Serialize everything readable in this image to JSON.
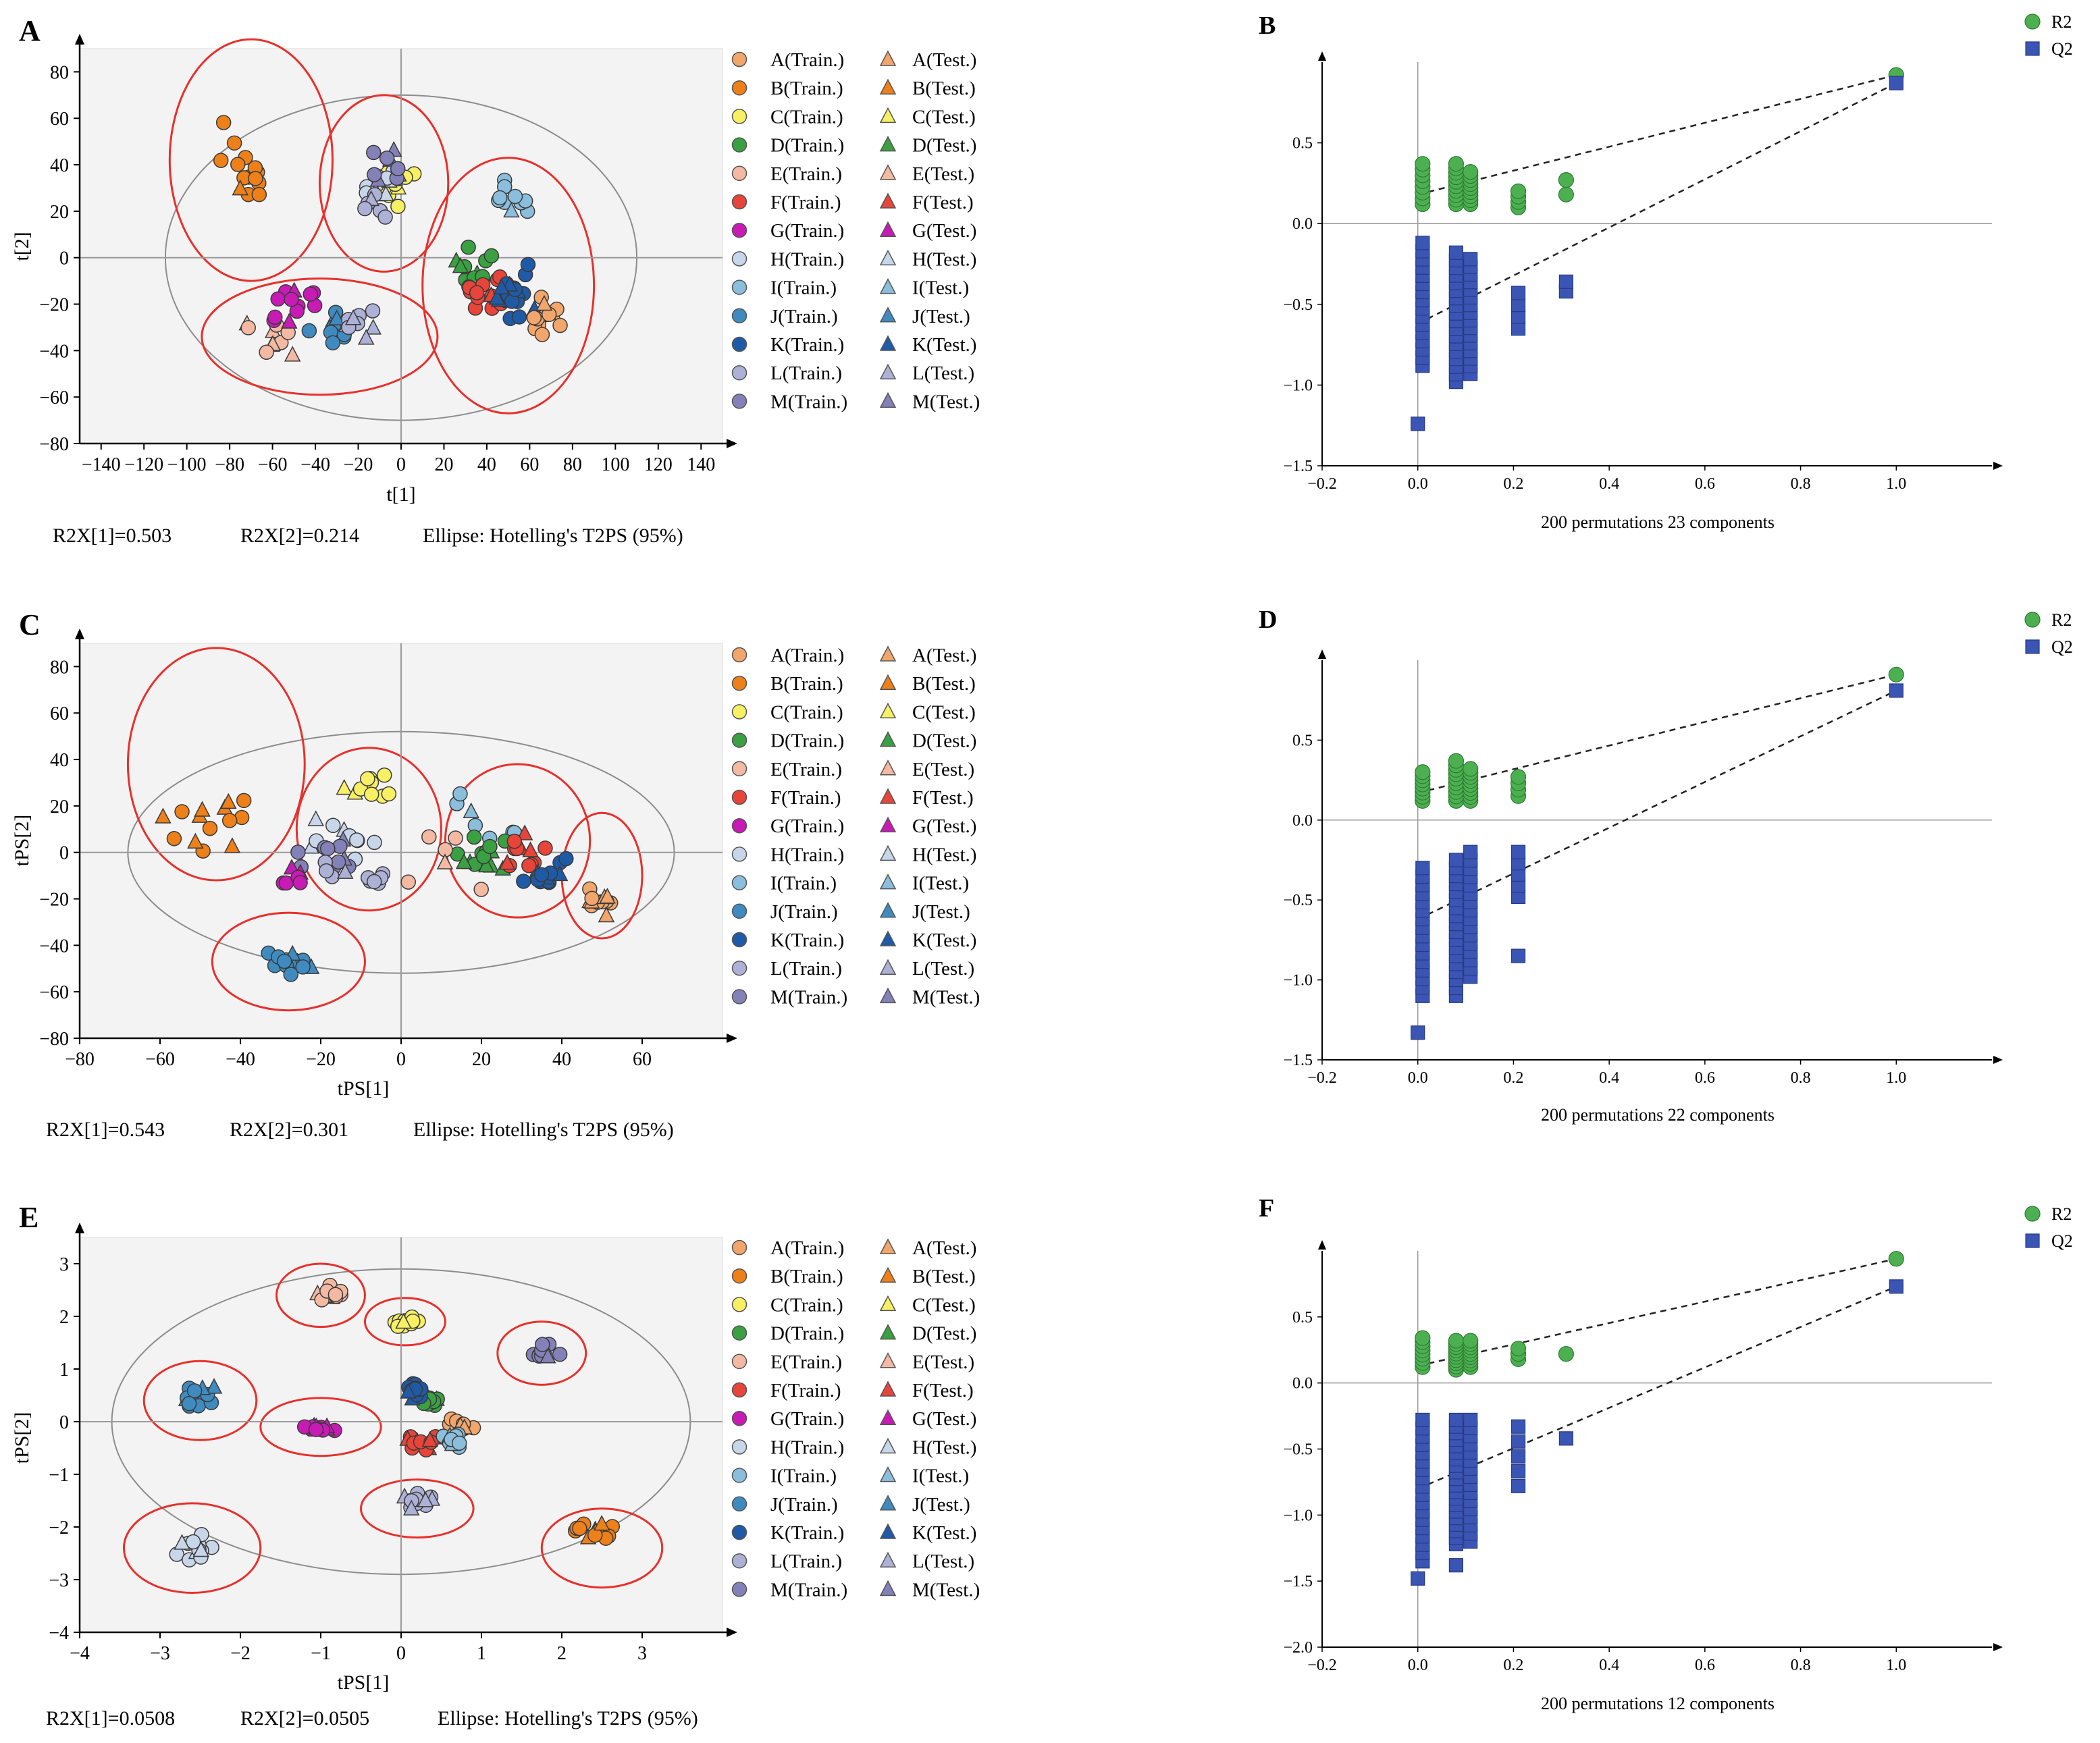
{
  "figure": {
    "group_colors": {
      "A": "#f2a66b",
      "B": "#ee8019",
      "C": "#f7f064",
      "D": "#3aa042",
      "E": "#f4b9a2",
      "F": "#e8443a",
      "G": "#c81bb5",
      "H": "#c8d6ea",
      "I": "#8bbedd",
      "J": "#3f8bc0",
      "K": "#1f5aa6",
      "L": "#aeb1d6",
      "M": "#8481b8"
    },
    "group_keys": [
      "A",
      "B",
      "C",
      "D",
      "E",
      "F",
      "G",
      "H",
      "I",
      "J",
      "K",
      "L",
      "M"
    ],
    "train_labels": [
      "A(Train.)",
      "B(Train.)",
      "C(Train.)",
      "D(Train.)",
      "E(Train.)",
      "F(Train.)",
      "G(Train.)",
      "H(Train.)",
      "I(Train.)",
      "J(Train.)",
      "K(Train.)",
      "L(Train.)",
      "M(Train.)"
    ],
    "test_labels": [
      "A(Test.)",
      "B(Test.)",
      "C(Test.)",
      "D(Test.)",
      "E(Test.)",
      "F(Test.)",
      "G(Test.)",
      "H(Test.)",
      "I(Test.)",
      "J(Test.)",
      "K(Test.)",
      "L(Test.)",
      "M(Test.)"
    ],
    "perm_colors": {
      "R2": "#4cb050",
      "Q2": "#3a55b4"
    }
  },
  "chart_data": [
    {
      "panel": "A",
      "type": "scatter",
      "xlabel": "t[1]",
      "ylabel": "t[2]",
      "xlim": [
        -150,
        150
      ],
      "ylim": [
        -80,
        90
      ],
      "xticks": [
        -140,
        -120,
        -100,
        -80,
        -60,
        -40,
        -20,
        0,
        20,
        40,
        60,
        80,
        100,
        120,
        140
      ],
      "yticks": [
        -80,
        -60,
        -40,
        -20,
        0,
        20,
        40,
        60,
        80
      ],
      "footer": [
        "R2X[1]=0.503",
        "R2X[2]=0.214",
        "Ellipse: Hotelling's T2PS (95%)"
      ],
      "hotelling": {
        "cx": 0,
        "cy": 0,
        "rx": 110,
        "ry": 70
      },
      "group_ellipses": [
        {
          "cx": -70,
          "cy": 42,
          "rx": 38,
          "ry": 52
        },
        {
          "cx": -8,
          "cy": 32,
          "rx": 30,
          "ry": 38
        },
        {
          "cx": 50,
          "cy": -12,
          "rx": 40,
          "ry": 55
        },
        {
          "cx": -38,
          "cy": -34,
          "rx": 55,
          "ry": 25
        }
      ],
      "clusters": [
        {
          "g": "B",
          "cx": -72,
          "cy": 40,
          "sx": 14,
          "sy": 20,
          "n": 14
        },
        {
          "g": "C",
          "cx": -2,
          "cy": 30,
          "sx": 9,
          "sy": 10,
          "n": 10
        },
        {
          "g": "H",
          "cx": -6,
          "cy": 34,
          "sx": 12,
          "sy": 12,
          "n": 10
        },
        {
          "g": "M",
          "cx": -8,
          "cy": 40,
          "sx": 10,
          "sy": 10,
          "n": 8
        },
        {
          "g": "L",
          "cx": -12,
          "cy": 25,
          "sx": 10,
          "sy": 10,
          "n": 6
        },
        {
          "g": "I",
          "cx": 50,
          "cy": 25,
          "sx": 12,
          "sy": 10,
          "n": 10
        },
        {
          "g": "D",
          "cx": 35,
          "cy": -5,
          "sx": 12,
          "sy": 12,
          "n": 14
        },
        {
          "g": "F",
          "cx": 42,
          "cy": -15,
          "sx": 14,
          "sy": 12,
          "n": 14
        },
        {
          "g": "K",
          "cx": 55,
          "cy": -15,
          "sx": 12,
          "sy": 14,
          "n": 16
        },
        {
          "g": "A",
          "cx": 68,
          "cy": -25,
          "sx": 8,
          "sy": 10,
          "n": 12
        },
        {
          "g": "E",
          "cx": -60,
          "cy": -35,
          "sx": 16,
          "sy": 10,
          "n": 10
        },
        {
          "g": "G",
          "cx": -50,
          "cy": -20,
          "sx": 16,
          "sy": 10,
          "n": 12
        },
        {
          "g": "J",
          "cx": -30,
          "cy": -30,
          "sx": 15,
          "sy": 8,
          "n": 14
        },
        {
          "g": "L",
          "cx": -20,
          "cy": -28,
          "sx": 12,
          "sy": 8,
          "n": 10
        }
      ]
    },
    {
      "panel": "B",
      "type": "scatter",
      "xlabel": "200 permutations 23 components",
      "xlim": [
        -0.2,
        1.2
      ],
      "ylim": [
        -1.5,
        1.0
      ],
      "xticks": [
        -0.2,
        0,
        0.2,
        0.4,
        0.6,
        0.8,
        1.0
      ],
      "xtick_labels": [
        "−0.2",
        "0.0",
        "0.2",
        "0.4",
        "0.6",
        "0.8",
        "1.0"
      ],
      "yticks": [
        -1.5,
        -1.0,
        -0.5,
        0,
        0.5
      ],
      "ytick_labels": [
        "−1.5",
        "−1.0",
        "−0.5",
        "0.0",
        "0.5"
      ],
      "legend": [
        "R2",
        "Q2"
      ],
      "r2_cols": [
        {
          "x": 0.01,
          "ymin": 0.12,
          "ymax": 0.37,
          "n": 8
        },
        {
          "x": 0.08,
          "ymin": 0.12,
          "ymax": 0.37,
          "n": 10
        },
        {
          "x": 0.11,
          "ymin": 0.12,
          "ymax": 0.32,
          "n": 9
        },
        {
          "x": 0.21,
          "ymin": 0.1,
          "ymax": 0.2,
          "n": 4
        },
        {
          "x": 0.31,
          "ymin": 0.18,
          "ymax": 0.27,
          "n": 2
        }
      ],
      "q2_cols": [
        {
          "x": 0.01,
          "ymin": -0.88,
          "ymax": -0.12,
          "n": 16
        },
        {
          "x": 0.08,
          "ymin": -0.98,
          "ymax": -0.18,
          "n": 18
        },
        {
          "x": 0.11,
          "ymin": -0.93,
          "ymax": -0.22,
          "n": 16
        },
        {
          "x": 0.21,
          "ymin": -0.65,
          "ymax": -0.43,
          "n": 4
        },
        {
          "x": 0.31,
          "ymin": -0.42,
          "ymax": -0.36,
          "n": 2
        }
      ],
      "q2_extra": [
        [
          0.0,
          -1.24
        ]
      ],
      "r2_end": 0.92,
      "q2_end": 0.87,
      "r2_int": 0.18,
      "q2_int": -0.62
    },
    {
      "panel": "C",
      "type": "scatter",
      "xlabel": "tPS[1]",
      "ylabel": "tPS[2]",
      "xlim": [
        -80,
        80
      ],
      "ylim": [
        -80,
        90
      ],
      "xticks": [
        -80,
        -60,
        -40,
        -20,
        0,
        20,
        40,
        60
      ],
      "yticks": [
        -80,
        -60,
        -40,
        -20,
        0,
        20,
        40,
        60,
        80
      ],
      "footer": [
        "R2X[1]=0.543",
        "R2X[2]=0.301",
        "Ellipse: Hotelling's T2PS (95%)"
      ],
      "hotelling": {
        "cx": 0,
        "cy": 0,
        "rx": 68,
        "ry": 52
      },
      "group_ellipses": [
        {
          "cx": -46,
          "cy": 38,
          "rx": 22,
          "ry": 50
        },
        {
          "cx": -8,
          "cy": 10,
          "rx": 18,
          "ry": 35
        },
        {
          "cx": 29,
          "cy": 5,
          "rx": 18,
          "ry": 33
        },
        {
          "cx": 50,
          "cy": -10,
          "rx": 10,
          "ry": 27
        },
        {
          "cx": -28,
          "cy": -47,
          "rx": 19,
          "ry": 21
        }
      ],
      "clusters": [
        {
          "g": "B",
          "cx": -48,
          "cy": 12,
          "sx": 12,
          "sy": 18,
          "n": 14
        },
        {
          "g": "C",
          "cx": -8,
          "cy": 28,
          "sx": 7,
          "sy": 6,
          "n": 10
        },
        {
          "g": "H",
          "cx": -15,
          "cy": 5,
          "sx": 12,
          "sy": 12,
          "n": 10
        },
        {
          "g": "M",
          "cx": -18,
          "cy": 0,
          "sx": 10,
          "sy": 10,
          "n": 10
        },
        {
          "g": "L",
          "cx": -12,
          "cy": -10,
          "sx": 10,
          "sy": 8,
          "n": 10
        },
        {
          "g": "G",
          "cx": -28,
          "cy": -10,
          "sx": 8,
          "sy": 5,
          "n": 6
        },
        {
          "g": "I",
          "cx": 25,
          "cy": 15,
          "sx": 12,
          "sy": 12,
          "n": 8
        },
        {
          "g": "D",
          "cx": 20,
          "cy": 0,
          "sx": 8,
          "sy": 8,
          "n": 14
        },
        {
          "g": "F",
          "cx": 32,
          "cy": 0,
          "sx": 8,
          "sy": 10,
          "n": 12
        },
        {
          "g": "K",
          "cx": 36,
          "cy": -8,
          "sx": 8,
          "sy": 10,
          "n": 14
        },
        {
          "g": "A",
          "cx": 50,
          "cy": -20,
          "sx": 4,
          "sy": 8,
          "n": 12
        },
        {
          "g": "E",
          "cx": 10,
          "cy": -5,
          "sx": 20,
          "sy": 15,
          "n": 6
        },
        {
          "g": "J",
          "cx": -28,
          "cy": -46,
          "sx": 8,
          "sy": 8,
          "n": 14
        }
      ]
    },
    {
      "panel": "D",
      "type": "scatter",
      "xlabel": "200 permutations 22 components",
      "xlim": [
        -0.2,
        1.2
      ],
      "ylim": [
        -1.5,
        1.0
      ],
      "xticks": [
        -0.2,
        0,
        0.2,
        0.4,
        0.6,
        0.8,
        1.0
      ],
      "xtick_labels": [
        "−0.2",
        "0.0",
        "0.2",
        "0.4",
        "0.6",
        "0.8",
        "1.0"
      ],
      "yticks": [
        -1.5,
        -1.0,
        -0.5,
        0,
        0.5
      ],
      "ytick_labels": [
        "−1.5",
        "−1.0",
        "−0.5",
        "0.0",
        "0.5"
      ],
      "legend": [
        "R2",
        "Q2"
      ],
      "r2_cols": [
        {
          "x": 0.01,
          "ymin": 0.12,
          "ymax": 0.3,
          "n": 8
        },
        {
          "x": 0.08,
          "ymin": 0.12,
          "ymax": 0.37,
          "n": 10
        },
        {
          "x": 0.11,
          "ymin": 0.12,
          "ymax": 0.32,
          "n": 9
        },
        {
          "x": 0.21,
          "ymin": 0.15,
          "ymax": 0.27,
          "n": 4
        }
      ],
      "q2_cols": [
        {
          "x": 0.01,
          "ymin": -1.1,
          "ymax": -0.3,
          "n": 16
        },
        {
          "x": 0.08,
          "ymin": -1.1,
          "ymax": -0.25,
          "n": 18
        },
        {
          "x": 0.11,
          "ymin": -0.98,
          "ymax": -0.2,
          "n": 16
        },
        {
          "x": 0.21,
          "ymin": -0.48,
          "ymax": -0.2,
          "n": 5
        }
      ],
      "q2_extra": [
        [
          0.0,
          -1.33
        ],
        [
          0.21,
          -0.85
        ]
      ],
      "r2_end": 0.91,
      "q2_end": 0.81,
      "r2_int": 0.17,
      "q2_int": -0.62
    },
    {
      "panel": "E",
      "type": "scatter",
      "xlabel": "tPS[1]",
      "ylabel": "tPS[2]",
      "xlim": [
        -4,
        4
      ],
      "ylim": [
        -4,
        3.5
      ],
      "xticks": [
        -4,
        -3,
        -2,
        -1,
        0,
        1,
        2,
        3
      ],
      "yticks": [
        -4,
        -3,
        -2,
        -1,
        0,
        1,
        2,
        3
      ],
      "footer": [
        "R2X[1]=0.0508",
        "R2X[2]=0.0505",
        "Ellipse: Hotelling's T2PS (95%)"
      ],
      "hotelling": {
        "cx": 0,
        "cy": 0,
        "rx": 3.6,
        "ry": 2.9
      },
      "group_ellipses": [
        {
          "cx": -1.0,
          "cy": 2.4,
          "rx": 0.55,
          "ry": 0.6
        },
        {
          "cx": 0.05,
          "cy": 1.9,
          "rx": 0.5,
          "ry": 0.45
        },
        {
          "cx": 1.75,
          "cy": 1.3,
          "rx": 0.55,
          "ry": 0.6
        },
        {
          "cx": -2.5,
          "cy": 0.4,
          "rx": 0.7,
          "ry": 0.75
        },
        {
          "cx": -1.0,
          "cy": -0.1,
          "rx": 0.75,
          "ry": 0.55
        },
        {
          "cx": -2.6,
          "cy": -2.4,
          "rx": 0.85,
          "ry": 0.85
        },
        {
          "cx": 0.2,
          "cy": -1.65,
          "rx": 0.7,
          "ry": 0.55
        },
        {
          "cx": 2.5,
          "cy": -2.4,
          "rx": 0.75,
          "ry": 0.75
        }
      ],
      "clusters": [
        {
          "g": "E",
          "cx": -0.9,
          "cy": 2.4,
          "sx": 0.2,
          "sy": 0.25,
          "n": 12
        },
        {
          "g": "C",
          "cx": 0.05,
          "cy": 1.9,
          "sx": 0.2,
          "sy": 0.12,
          "n": 10
        },
        {
          "g": "M",
          "cx": 1.8,
          "cy": 1.3,
          "sx": 0.2,
          "sy": 0.2,
          "n": 10
        },
        {
          "g": "J",
          "cx": -2.5,
          "cy": 0.5,
          "sx": 0.3,
          "sy": 0.25,
          "n": 14
        },
        {
          "g": "G",
          "cx": -1.0,
          "cy": -0.1,
          "sx": 0.3,
          "sy": 0.07,
          "n": 14
        },
        {
          "g": "H",
          "cx": -2.6,
          "cy": -2.4,
          "sx": 0.35,
          "sy": 0.3,
          "n": 14
        },
        {
          "g": "L",
          "cx": 0.2,
          "cy": -1.5,
          "sx": 0.25,
          "sy": 0.18,
          "n": 12
        },
        {
          "g": "B",
          "cx": 2.4,
          "cy": -2.1,
          "sx": 0.3,
          "sy": 0.25,
          "n": 14
        },
        {
          "g": "D",
          "cx": 0.35,
          "cy": 0.4,
          "sx": 0.18,
          "sy": 0.2,
          "n": 12
        },
        {
          "g": "K",
          "cx": 0.15,
          "cy": 0.6,
          "sx": 0.18,
          "sy": 0.2,
          "n": 14
        },
        {
          "g": "F",
          "cx": 0.3,
          "cy": -0.4,
          "sx": 0.3,
          "sy": 0.25,
          "n": 12
        },
        {
          "g": "A",
          "cx": 0.75,
          "cy": -0.1,
          "sx": 0.18,
          "sy": 0.18,
          "n": 12
        },
        {
          "g": "I",
          "cx": 0.65,
          "cy": -0.35,
          "sx": 0.2,
          "sy": 0.18,
          "n": 12
        }
      ]
    },
    {
      "panel": "F",
      "type": "scatter",
      "xlabel": "200 permutations 12 components",
      "xlim": [
        -0.2,
        1.2
      ],
      "ylim": [
        -2.0,
        1.0
      ],
      "xticks": [
        -0.2,
        0,
        0.2,
        0.4,
        0.6,
        0.8,
        1.0
      ],
      "xtick_labels": [
        "−0.2",
        "0.0",
        "0.2",
        "0.4",
        "0.6",
        "0.8",
        "1.0"
      ],
      "yticks": [
        -2.0,
        -1.5,
        -1.0,
        -0.5,
        0,
        0.5
      ],
      "ytick_labels": [
        "−2.0",
        "−1.5",
        "−1.0",
        "−0.5",
        "0.0",
        "0.5"
      ],
      "legend": [
        "R2",
        "Q2"
      ],
      "r2_cols": [
        {
          "x": 0.01,
          "ymin": 0.12,
          "ymax": 0.34,
          "n": 8
        },
        {
          "x": 0.08,
          "ymin": 0.1,
          "ymax": 0.32,
          "n": 10
        },
        {
          "x": 0.11,
          "ymin": 0.12,
          "ymax": 0.32,
          "n": 9
        },
        {
          "x": 0.21,
          "ymin": 0.18,
          "ymax": 0.26,
          "n": 3
        },
        {
          "x": 0.31,
          "ymin": 0.22,
          "ymax": 0.22,
          "n": 1
        }
      ],
      "q2_cols": [
        {
          "x": 0.01,
          "ymin": -1.35,
          "ymax": -0.28,
          "n": 18
        },
        {
          "x": 0.08,
          "ymin": -1.22,
          "ymax": -0.28,
          "n": 20
        },
        {
          "x": 0.11,
          "ymin": -1.2,
          "ymax": -0.28,
          "n": 16
        },
        {
          "x": 0.21,
          "ymin": -0.78,
          "ymax": -0.33,
          "n": 5
        },
        {
          "x": 0.31,
          "ymin": -0.42,
          "ymax": -0.42,
          "n": 1
        }
      ],
      "q2_extra": [
        [
          0.0,
          -1.48
        ],
        [
          0.08,
          -1.38
        ]
      ],
      "r2_end": 0.94,
      "q2_end": 0.73,
      "r2_int": 0.13,
      "q2_int": -0.8
    }
  ]
}
